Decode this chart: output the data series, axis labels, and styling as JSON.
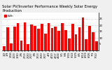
{
  "title": "Solar PV/Inverter Performance Weekly Solar Energy Production",
  "bar_color": "#ff0000",
  "dark_bar_color": "#cc0000",
  "bg_color": "#f0f0f0",
  "plot_bg": "#ffffff",
  "grid_color": "#aaaaaa",
  "values": [
    3.5,
    18.5,
    5.5,
    19.0,
    21.5,
    8.0,
    22.0,
    5.0,
    20.5,
    19.5,
    17.5,
    21.0,
    13.5,
    21.5,
    18.0,
    19.0,
    15.5,
    21.5,
    16.0,
    9.5,
    21.0,
    13.0,
    18.5,
    26.0,
    9.0,
    19.5,
    14.5,
    7.0
  ],
  "labels": [
    "1/2",
    "1/9",
    "1/16",
    "1/23",
    "1/30",
    "2/6",
    "2/13",
    "2/20",
    "2/27",
    "3/6",
    "3/13",
    "3/20",
    "3/27",
    "4/3",
    "4/10",
    "4/17",
    "4/24",
    "5/1",
    "5/8",
    "5/15",
    "5/22",
    "5/29",
    "6/5",
    "6/12",
    "6/19",
    "6/26",
    "7/3",
    "7/10"
  ],
  "ylim": [
    0,
    30
  ],
  "yticks": [
    5,
    10,
    15,
    20,
    25
  ],
  "ytick_labels": [
    "5",
    "10",
    "15",
    "20",
    "25"
  ],
  "legend_label": "kWh",
  "title_fontsize": 3.8,
  "tick_fontsize": 2.8,
  "legend_fontsize": 2.8
}
